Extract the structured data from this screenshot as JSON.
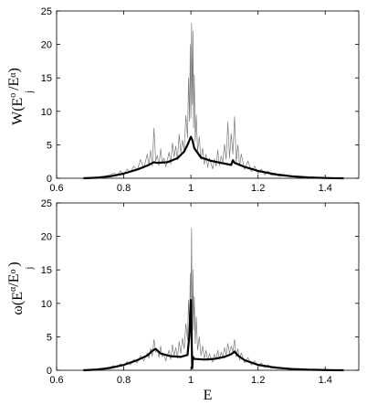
{
  "chart_data": [
    {
      "type": "line",
      "ylabel_main": "W(E",
      "ylabel_sup1": "o",
      "ylabel_sub1": "j",
      "ylabel_mid": "/E",
      "ylabel_sup2": "α",
      "ylabel_end": ")",
      "xlabel": "",
      "xlim": [
        0.6,
        1.5
      ],
      "ylim": [
        0,
        25
      ],
      "xticks": [
        0.6,
        0.8,
        1,
        1.2,
        1.4
      ],
      "xtick_labels": [
        "0.6",
        "0.8",
        "1",
        "1.2",
        "1.4"
      ],
      "yticks": [
        0,
        5,
        10,
        15,
        20,
        25
      ],
      "ytick_labels": [
        "0",
        "5",
        "10",
        "15",
        "20",
        "25"
      ],
      "grid": false,
      "series": [
        {
          "style": "smooth-thick-black",
          "x": [
            0.68,
            0.72,
            0.76,
            0.8,
            0.84,
            0.87,
            0.89,
            0.9,
            0.93,
            0.96,
            0.98,
            0.99,
            1.0,
            1.005,
            1.01,
            1.03,
            1.06,
            1.09,
            1.11,
            1.12,
            1.125,
            1.13,
            1.16,
            1.2,
            1.25,
            1.3,
            1.35,
            1.4,
            1.43,
            1.455
          ],
          "y": [
            0,
            0.08,
            0.3,
            0.7,
            1.3,
            1.9,
            2.4,
            2.3,
            2.4,
            3.0,
            4.0,
            5.0,
            6.2,
            5.6,
            4.5,
            3.1,
            2.6,
            2.3,
            2.1,
            2.0,
            2.7,
            2.3,
            1.7,
            1.1,
            0.6,
            0.3,
            0.12,
            0.04,
            0.01,
            0
          ]
        },
        {
          "style": "noisy-thin-gray",
          "x": [
            0.68,
            0.7,
            0.72,
            0.74,
            0.76,
            0.77,
            0.78,
            0.79,
            0.8,
            0.81,
            0.82,
            0.83,
            0.84,
            0.85,
            0.86,
            0.87,
            0.875,
            0.88,
            0.885,
            0.89,
            0.895,
            0.9,
            0.905,
            0.91,
            0.915,
            0.92,
            0.925,
            0.93,
            0.935,
            0.94,
            0.945,
            0.95,
            0.955,
            0.96,
            0.965,
            0.97,
            0.975,
            0.98,
            0.985,
            0.99,
            0.993,
            0.996,
            0.998,
            1.0,
            1.002,
            1.004,
            1.006,
            1.008,
            1.01,
            1.013,
            1.016,
            1.02,
            1.025,
            1.03,
            1.035,
            1.04,
            1.045,
            1.05,
            1.055,
            1.06,
            1.065,
            1.07,
            1.075,
            1.08,
            1.085,
            1.09,
            1.095,
            1.1,
            1.105,
            1.11,
            1.115,
            1.12,
            1.125,
            1.13,
            1.135,
            1.14,
            1.145,
            1.15,
            1.16,
            1.17,
            1.18,
            1.19,
            1.2,
            1.21,
            1.22,
            1.23,
            1.24,
            1.25,
            1.26,
            1.28,
            1.3,
            1.32,
            1.34,
            1.36,
            1.38,
            1.4,
            1.42,
            1.44,
            1.455
          ],
          "y": [
            0,
            0.1,
            0.2,
            0.3,
            0.5,
            0.8,
            0.4,
            1.1,
            0.6,
            1.4,
            0.9,
            1.8,
            1.2,
            2.8,
            1.5,
            3.6,
            2.0,
            4.2,
            1.8,
            7.5,
            2.6,
            3.4,
            1.9,
            4.4,
            2.3,
            3.0,
            1.7,
            2.8,
            3.9,
            2.1,
            5.3,
            3.2,
            4.8,
            2.7,
            6.6,
            3.8,
            5.7,
            4.2,
            9.4,
            6.0,
            15.0,
            8.5,
            20.0,
            9.0,
            23.2,
            11.0,
            22.0,
            7.5,
            15.5,
            5.5,
            9.5,
            4.0,
            6.2,
            2.8,
            4.5,
            2.1,
            3.6,
            1.6,
            3.0,
            2.2,
            1.4,
            2.9,
            1.8,
            4.2,
            1.9,
            3.3,
            2.4,
            5.1,
            2.8,
            8.4,
            3.0,
            6.7,
            3.6,
            9.2,
            2.4,
            5.0,
            1.8,
            3.6,
            1.3,
            2.6,
            1.0,
            1.8,
            0.7,
            1.4,
            0.5,
            1.1,
            0.4,
            0.8,
            0.3,
            0.4,
            0.3,
            0.15,
            0.2,
            0.08,
            0.1,
            0.04,
            0.05,
            0.02,
            0
          ]
        }
      ]
    },
    {
      "type": "line",
      "ylabel_main": "ω(E",
      "ylabel_sup1": "α",
      "ylabel_sub1": "",
      "ylabel_mid": "/E",
      "ylabel_sup2": "o",
      "ylabel_sub2": "j",
      "ylabel_end": ")",
      "xlabel": "E",
      "xlim": [
        0.6,
        1.5
      ],
      "ylim": [
        0,
        25
      ],
      "xticks": [
        0.6,
        0.8,
        1,
        1.2,
        1.4
      ],
      "xtick_labels": [
        "0.6",
        "0.8",
        "1",
        "1.2",
        "1.4"
      ],
      "yticks": [
        0,
        5,
        10,
        15,
        20,
        25
      ],
      "ytick_labels": [
        "0",
        "5",
        "10",
        "15",
        "20",
        "25"
      ],
      "grid": false,
      "series": [
        {
          "style": "smooth-thick-black",
          "x": [
            0.68,
            0.72,
            0.76,
            0.8,
            0.84,
            0.87,
            0.885,
            0.895,
            0.91,
            0.94,
            0.97,
            0.99,
            0.995,
            1.0,
            1.002,
            1.004,
            1.006,
            1.01,
            1.04,
            1.07,
            1.1,
            1.12,
            1.13,
            1.14,
            1.16,
            1.2,
            1.25,
            1.3,
            1.35,
            1.4,
            1.43,
            1.455
          ],
          "y": [
            0,
            0.1,
            0.35,
            0.8,
            1.5,
            2.2,
            2.9,
            3.2,
            2.5,
            2.1,
            2.0,
            2.3,
            5.0,
            10.5,
            5.0,
            0.3,
            2.0,
            1.7,
            1.6,
            1.7,
            2.0,
            2.4,
            2.8,
            2.2,
            1.5,
            0.8,
            0.4,
            0.2,
            0.08,
            0.03,
            0.01,
            0
          ]
        },
        {
          "style": "noisy-thin-gray",
          "x": [
            0.68,
            0.7,
            0.72,
            0.74,
            0.76,
            0.77,
            0.78,
            0.79,
            0.8,
            0.81,
            0.82,
            0.83,
            0.84,
            0.85,
            0.86,
            0.87,
            0.875,
            0.88,
            0.885,
            0.89,
            0.895,
            0.9,
            0.905,
            0.91,
            0.915,
            0.92,
            0.925,
            0.93,
            0.935,
            0.94,
            0.945,
            0.95,
            0.955,
            0.96,
            0.965,
            0.97,
            0.975,
            0.98,
            0.985,
            0.99,
            0.993,
            0.996,
            0.998,
            1.0,
            1.002,
            1.004,
            1.006,
            1.008,
            1.01,
            1.013,
            1.016,
            1.02,
            1.025,
            1.03,
            1.035,
            1.04,
            1.045,
            1.05,
            1.055,
            1.06,
            1.065,
            1.07,
            1.075,
            1.08,
            1.085,
            1.09,
            1.095,
            1.1,
            1.105,
            1.11,
            1.115,
            1.12,
            1.125,
            1.13,
            1.135,
            1.14,
            1.145,
            1.15,
            1.16,
            1.17,
            1.18,
            1.19,
            1.2,
            1.21,
            1.22,
            1.23,
            1.24,
            1.25,
            1.26,
            1.28,
            1.3,
            1.32,
            1.34,
            1.36,
            1.38,
            1.4,
            1.42,
            1.44,
            1.455
          ],
          "y": [
            0,
            0.1,
            0.2,
            0.3,
            0.5,
            0.7,
            0.4,
            1.0,
            0.6,
            1.3,
            0.8,
            1.6,
            1.1,
            2.2,
            1.4,
            2.6,
            1.8,
            3.3,
            2.1,
            4.6,
            2.7,
            3.1,
            1.9,
            3.6,
            2.0,
            2.5,
            1.4,
            2.2,
            3.0,
            1.6,
            3.8,
            2.2,
            3.4,
            1.8,
            4.3,
            2.5,
            4.8,
            3.2,
            7.0,
            4.5,
            10.5,
            6.0,
            14.5,
            9.0,
            21.2,
            3.0,
            15.0,
            6.0,
            11.0,
            4.0,
            8.0,
            3.0,
            5.0,
            2.2,
            3.6,
            1.7,
            3.0,
            1.4,
            2.5,
            1.8,
            1.2,
            2.4,
            1.6,
            3.0,
            1.7,
            2.7,
            2.0,
            3.4,
            2.3,
            4.0,
            2.5,
            3.6,
            2.8,
            4.6,
            2.0,
            3.2,
            1.5,
            2.6,
            1.1,
            1.9,
            0.8,
            1.4,
            0.6,
            1.1,
            0.4,
            0.8,
            0.3,
            0.6,
            0.25,
            0.3,
            0.2,
            0.12,
            0.15,
            0.06,
            0.08,
            0.03,
            0.04,
            0.01,
            0
          ]
        }
      ]
    }
  ]
}
